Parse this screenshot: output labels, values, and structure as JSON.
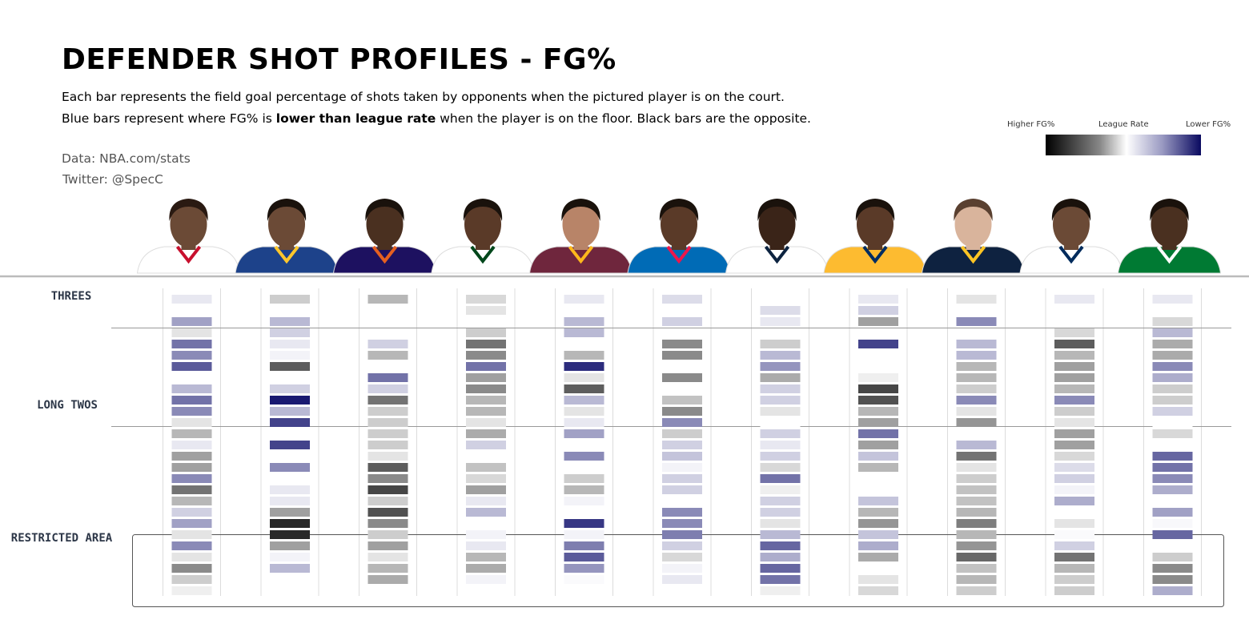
{
  "header": {
    "title": "DEFENDER SHOT PROFILES - FG%",
    "subtitle_line1": "Each bar represents the field goal percentage of shots taken by opponents when the pictured player is on the court.",
    "subtitle_line2_pre": "Blue bars represent where FG% is ",
    "subtitle_line2_bold": "lower than league rate",
    "subtitle_line2_post": " when the player is on the floor. Black bars are the opposite.",
    "source": "Data: NBA.com/stats",
    "twitter": "Twitter: @SpecC"
  },
  "legend": {
    "left": "Higher FG%",
    "mid": "League Rate",
    "right": "Lower FG%",
    "colors": {
      "higher": "#000000",
      "league": "#ffffff",
      "lower": "#0a0a60"
    }
  },
  "chart_data": {
    "type": "heatmap",
    "sections": [
      "THREES",
      "LONG TWOS",
      "RESTRICTED AREA"
    ],
    "value_scale": "-1 = Higher FG% (black), 0 = League Rate (white), 1 = Lower FG% (blue)",
    "players": [
      {
        "jersey": "#ffffff",
        "trim": "#c8102e",
        "skin": "#6b4a36",
        "hair": "#2a1a12",
        "values": [
          0.1,
          0,
          0.4,
          -0.1,
          0.6,
          0.5,
          0.7,
          0,
          0.3,
          0.6,
          0.5,
          -0.1,
          -0.3,
          0.1,
          -0.4,
          -0.4,
          0.5,
          -0.6,
          -0.3,
          0.2,
          0.4,
          -0.1,
          0.5,
          -0.1,
          -0.5,
          -0.2,
          -0.05
        ]
      },
      {
        "jersey": "#1d428a",
        "trim": "#ffc72c",
        "skin": "#6b4a36",
        "hair": "#1a120c",
        "values": [
          -0.2,
          0,
          0.3,
          0.2,
          0.1,
          0.05,
          -0.7,
          0,
          0.2,
          0.98,
          0.3,
          0.8,
          0,
          0.8,
          0,
          0.5,
          0,
          0.1,
          0.1,
          -0.4,
          -0.93,
          -0.93,
          -0.4,
          0.05,
          0.3,
          0,
          0
        ]
      },
      {
        "jersey": "#1d1160",
        "trim": "#e56020",
        "skin": "#4a3020",
        "hair": "#1a120c",
        "values": [
          -0.3,
          0,
          0,
          0,
          0.2,
          -0.3,
          0,
          0.6,
          0.2,
          -0.6,
          -0.2,
          -0.2,
          -0.2,
          -0.2,
          -0.1,
          -0.7,
          -0.5,
          -0.8,
          -0.2,
          -0.75,
          -0.5,
          -0.2,
          -0.4,
          -0.1,
          -0.3,
          -0.35,
          0
        ]
      },
      {
        "jersey": "#ffffff",
        "trim": "#00471b",
        "skin": "#5a3a28",
        "hair": "#1a120c",
        "values": [
          -0.15,
          -0.1,
          0,
          -0.2,
          -0.6,
          -0.5,
          0.6,
          -0.4,
          -0.5,
          -0.3,
          -0.3,
          -0.1,
          -0.35,
          0.2,
          0,
          -0.25,
          -0.15,
          -0.4,
          0.1,
          0.3,
          0,
          0.05,
          0.1,
          -0.3,
          -0.35,
          0.05,
          0
        ]
      },
      {
        "jersey": "#6f263d",
        "trim": "#ffb81c",
        "skin": "#b88468",
        "hair": "#1a120c",
        "values": [
          0.1,
          0,
          0.3,
          0.3,
          0,
          -0.3,
          0.9,
          -0.1,
          -0.7,
          0.3,
          -0.1,
          0.1,
          0.4,
          0,
          0.5,
          0,
          -0.2,
          -0.3,
          0.05,
          0,
          0.85,
          0.05,
          0.55,
          0.7,
          0.45,
          0.02,
          0
        ]
      },
      {
        "jersey": "#006bb6",
        "trim": "#ed174c",
        "skin": "#5a3a28",
        "hair": "#1a120c",
        "values": [
          0.15,
          0,
          0.2,
          0,
          -0.5,
          -0.5,
          0,
          -0.5,
          0,
          -0.25,
          -0.5,
          0.5,
          -0.2,
          0.2,
          0.25,
          0.05,
          0.2,
          0.2,
          0,
          0.5,
          0.5,
          0.55,
          0.2,
          -0.15,
          0.05,
          0.1,
          0
        ]
      },
      {
        "jersey": "#ffffff",
        "trim": "#0c2340",
        "skin": "#3a2418",
        "hair": "#1a120c",
        "values": [
          0,
          0.15,
          0.1,
          0,
          -0.2,
          0.3,
          0.45,
          -0.35,
          0.2,
          0.2,
          -0.1,
          0,
          0.2,
          0.1,
          0.2,
          -0.15,
          0.6,
          -0.05,
          0.2,
          0.2,
          -0.1,
          0.3,
          0.65,
          0.35,
          0.65,
          0.6,
          -0.05
        ]
      },
      {
        "jersey": "#fdbb30",
        "trim": "#002d62",
        "skin": "#5a3a28",
        "hair": "#1a120c",
        "values": [
          0.1,
          0.2,
          -0.4,
          0,
          0.8,
          0,
          0,
          -0.05,
          -0.8,
          -0.75,
          -0.3,
          -0.4,
          0.6,
          -0.4,
          0.25,
          -0.3,
          0,
          0,
          0.25,
          -0.3,
          -0.45,
          0.25,
          0.35,
          -0.35,
          0,
          -0.1,
          -0.15
        ]
      },
      {
        "jersey": "#0e2240",
        "trim": "#fec524",
        "skin": "#d9b49c",
        "hair": "#5a4030",
        "values": [
          -0.1,
          0,
          0.5,
          0,
          0.3,
          0.3,
          -0.3,
          -0.3,
          -0.2,
          0.5,
          -0.1,
          -0.45,
          0,
          0.3,
          -0.6,
          -0.1,
          -0.2,
          -0.25,
          -0.25,
          -0.3,
          -0.55,
          -0.3,
          -0.45,
          -0.65,
          -0.25,
          -0.3,
          -0.2
        ]
      },
      {
        "jersey": "#ffffff",
        "trim": "#002b5c",
        "skin": "#6b4a36",
        "hair": "#1a120c",
        "values": [
          0.1,
          0,
          0,
          -0.15,
          -0.7,
          -0.3,
          -0.4,
          -0.4,
          -0.3,
          0.5,
          -0.2,
          -0.1,
          -0.4,
          -0.4,
          -0.15,
          0.15,
          0.2,
          0.05,
          0.35,
          0,
          -0.1,
          0.02,
          0.2,
          -0.6,
          -0.3,
          -0.2,
          -0.2
        ]
      },
      {
        "jersey": "#007a33",
        "trim": "#ffffff",
        "skin": "#4a3020",
        "hair": "#1a120c",
        "values": [
          0.1,
          0,
          -0.15,
          0.3,
          -0.35,
          -0.35,
          0.5,
          0.35,
          -0.2,
          -0.2,
          0.2,
          0,
          -0.15,
          0,
          0.65,
          0.6,
          0.5,
          0.35,
          0,
          0.4,
          0.03,
          0.65,
          0,
          -0.2,
          -0.5,
          -0.5,
          0.35
        ]
      }
    ]
  }
}
